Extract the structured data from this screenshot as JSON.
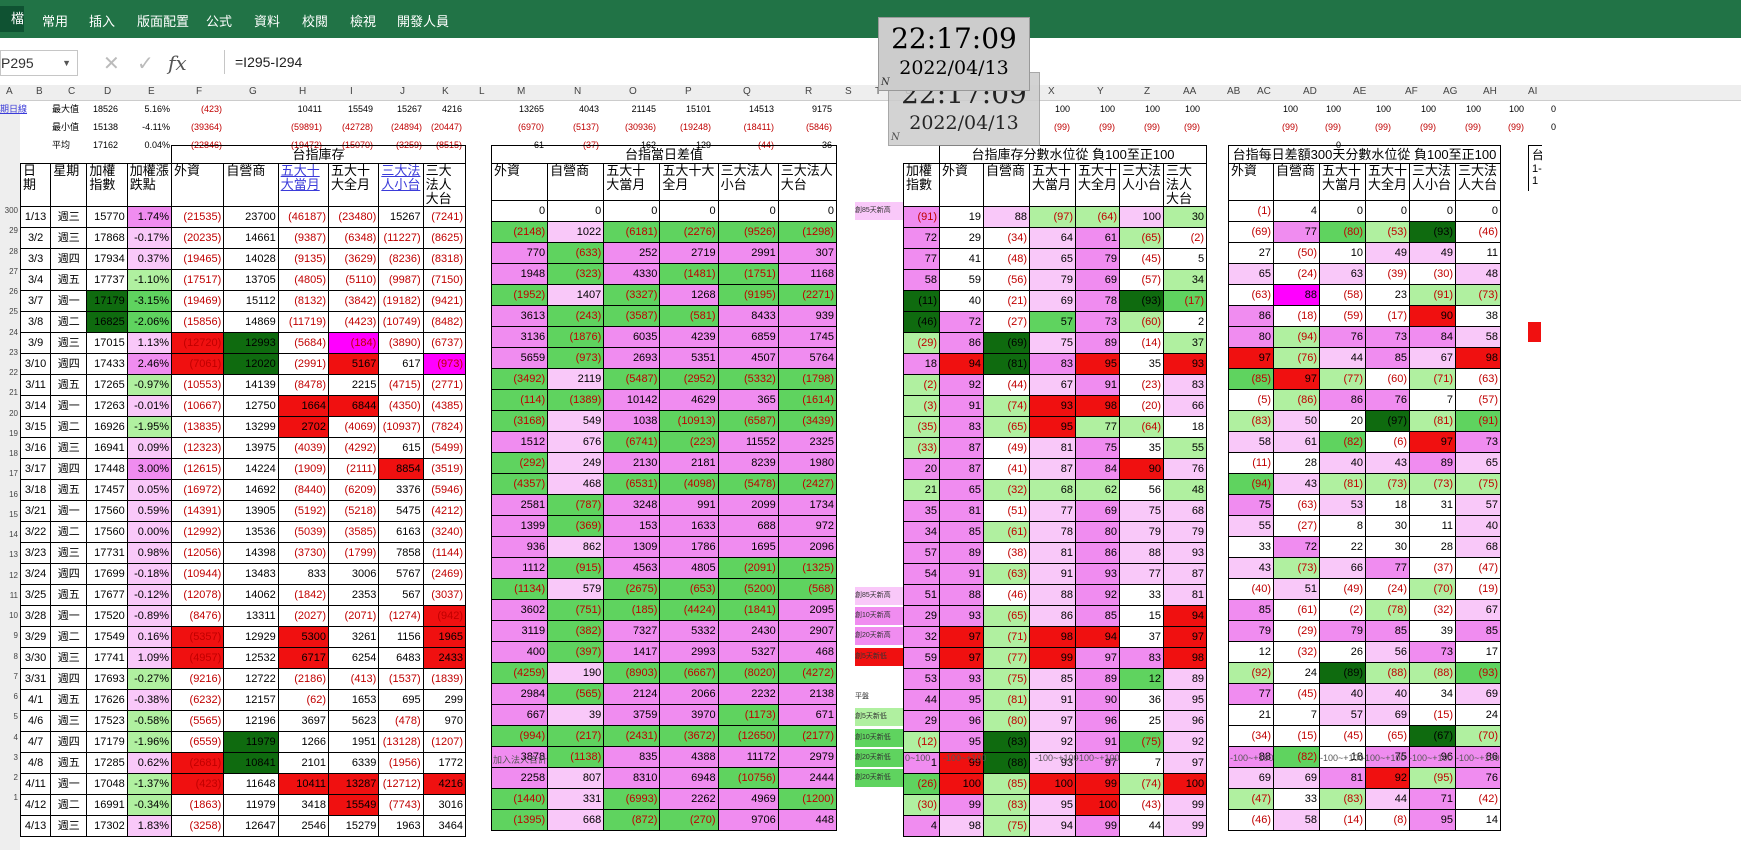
{
  "ribbon": {
    "file_label": "檔案",
    "tabs": [
      "常用",
      "插入",
      "版面配置",
      "公式",
      "資料",
      "校閱",
      "檢視",
      "開發人員"
    ]
  },
  "formula_bar": {
    "name_box": "P295",
    "formula": "=I295-I294",
    "fx_label": "fx",
    "cancel_icon": "x-icon",
    "enter_icon": "check-icon"
  },
  "columns": [
    "A",
    "B",
    "C",
    "D",
    "E",
    "F",
    "G",
    "H",
    "I",
    "J",
    "K",
    "L",
    "M",
    "N",
    "O",
    "P",
    "Q",
    "R",
    "S",
    "T",
    "U",
    "V",
    "W",
    "X",
    "Y",
    "Z",
    "AA",
    "AB",
    "AC",
    "AD",
    "AE",
    "AF",
    "AG",
    "AH",
    "AI"
  ],
  "row_numbers": [
    "300",
    "29",
    "28",
    "27",
    "26",
    "25",
    "24",
    "23",
    "22",
    "21",
    "20",
    "19",
    "18",
    "17",
    "16",
    "15",
    "14",
    "13",
    "12",
    "11",
    "10",
    "9",
    "8",
    "7",
    "6",
    "5",
    "4",
    "3",
    "2",
    "1"
  ],
  "stats": {
    "link": "期日線",
    "labels": [
      "最大值",
      "最小值",
      "平均"
    ],
    "D": [
      "18526",
      "15138",
      "17162"
    ],
    "E": [
      "5.16%",
      "-4.11%",
      "0.04%"
    ],
    "F": [
      "(423)",
      "(39364)",
      "(22846)"
    ],
    "H": [
      "10411",
      "(59891)",
      "(19472)"
    ],
    "I": [
      "15549",
      "(42728)",
      "(15070)"
    ],
    "J": [
      "15267",
      "(24894)",
      "(3259)"
    ],
    "K": [
      "4216",
      "(20447)",
      "(8515)"
    ],
    "M": [
      "13265",
      "(6970)",
      "61"
    ],
    "N": [
      "4043",
      "(5137)",
      "(37)"
    ],
    "O": [
      "21145",
      "(30936)",
      "162"
    ],
    "P": [
      "15101",
      "(19248)",
      "129"
    ],
    "Q": [
      "14513",
      "(18411)",
      "(44)"
    ],
    "R": [
      "9175",
      "(5846)",
      "36"
    ],
    "X": [
      "100",
      "(99)"
    ],
    "Y": [
      "100",
      "(99)"
    ],
    "Z": [
      "100",
      "(99)"
    ],
    "AA": [
      "100",
      "(99)"
    ],
    "AC": [
      "100",
      "(99)"
    ],
    "AD": [
      "100",
      "(99)",
      "0"
    ],
    "AE": [
      "100",
      "(99)"
    ],
    "AF": [
      "100",
      "(99)"
    ],
    "AG": [
      "100",
      "(99)"
    ],
    "AH": [
      "100",
      "(99)"
    ],
    "AI": [
      "0",
      "0"
    ]
  },
  "t1": {
    "section": "台指庫存",
    "headers": [
      "日期",
      "星期",
      "加權指數",
      "加權漲跌點",
      "外資",
      "自營商",
      "五大十大當月",
      "五大十大全月",
      "三大法人小台",
      "三大法人大台"
    ],
    "rows": [
      [
        "1/13",
        "週三",
        "15770",
        "1.74%",
        "(21535)",
        "23700",
        "(46187)",
        "(23480)",
        "15267",
        "(7241)"
      ],
      [
        "3/2",
        "週三",
        "17868",
        "-0.17%",
        "(20235)",
        "14661",
        "(9387)",
        "(6348)",
        "(11227)",
        "(8625)"
      ],
      [
        "3/3",
        "週四",
        "17934",
        "0.37%",
        "(19465)",
        "14028",
        "(9135)",
        "(3629)",
        "(8236)",
        "(8318)"
      ],
      [
        "3/4",
        "週五",
        "17737",
        "-1.10%",
        "(17517)",
        "13705",
        "(4805)",
        "(5110)",
        "(9987)",
        "(7150)"
      ],
      [
        "3/7",
        "週一",
        "17179",
        "-3.15%",
        "(19469)",
        "15112",
        "(8132)",
        "(3842)",
        "(19182)",
        "(9421)"
      ],
      [
        "3/8",
        "週二",
        "16825",
        "-2.06%",
        "(15856)",
        "14869",
        "(11719)",
        "(4423)",
        "(10749)",
        "(8482)"
      ],
      [
        "3/9",
        "週三",
        "17015",
        "1.13%",
        "(12720)",
        "12993",
        "(5684)",
        "(184)",
        "(3890)",
        "(6737)"
      ],
      [
        "3/10",
        "週四",
        "17433",
        "2.46%",
        "(7061)",
        "12020",
        "(2991)",
        "5167",
        "617",
        "(973)"
      ],
      [
        "3/11",
        "週五",
        "17265",
        "-0.97%",
        "(10553)",
        "14139",
        "(8478)",
        "2215",
        "(4715)",
        "(2771)"
      ],
      [
        "3/14",
        "週一",
        "17263",
        "-0.01%",
        "(10667)",
        "12750",
        "1664",
        "6844",
        "(4350)",
        "(4385)"
      ],
      [
        "3/15",
        "週二",
        "16926",
        "-1.95%",
        "(13835)",
        "13299",
        "2702",
        "(4069)",
        "(10937)",
        "(7824)"
      ],
      [
        "3/16",
        "週三",
        "16941",
        "0.09%",
        "(12323)",
        "13975",
        "(4039)",
        "(4292)",
        "615",
        "(5499)"
      ],
      [
        "3/17",
        "週四",
        "17448",
        "3.00%",
        "(12615)",
        "14224",
        "(1909)",
        "(2111)",
        "8854",
        "(3519)"
      ],
      [
        "3/18",
        "週五",
        "17457",
        "0.05%",
        "(16972)",
        "14692",
        "(8440)",
        "(6209)",
        "3376",
        "(5946)"
      ],
      [
        "3/21",
        "週一",
        "17560",
        "0.59%",
        "(14391)",
        "13905",
        "(5192)",
        "(5218)",
        "5475",
        "(4212)"
      ],
      [
        "3/22",
        "週二",
        "17560",
        "0.00%",
        "(12992)",
        "13536",
        "(5039)",
        "(3585)",
        "6163",
        "(3240)"
      ],
      [
        "3/23",
        "週三",
        "17731",
        "0.98%",
        "(12056)",
        "14398",
        "(3730)",
        "(1799)",
        "7858",
        "(1144)"
      ],
      [
        "3/24",
        "週四",
        "17699",
        "-0.18%",
        "(10944)",
        "13483",
        "833",
        "3006",
        "5767",
        "(2469)"
      ],
      [
        "3/25",
        "週五",
        "17677",
        "-0.12%",
        "(12078)",
        "14062",
        "(1842)",
        "2353",
        "567",
        "(3037)"
      ],
      [
        "3/28",
        "週一",
        "17520",
        "-0.89%",
        "(8476)",
        "13311",
        "(2027)",
        "(2071)",
        "(1274)",
        "(942)"
      ],
      [
        "3/29",
        "週二",
        "17549",
        "0.16%",
        "(5357)",
        "12929",
        "5300",
        "3261",
        "1156",
        "1965"
      ],
      [
        "3/30",
        "週三",
        "17741",
        "1.09%",
        "(4957)",
        "12532",
        "6717",
        "6254",
        "6483",
        "2433"
      ],
      [
        "3/31",
        "週四",
        "17693",
        "-0.27%",
        "(9216)",
        "12722",
        "(2186)",
        "(413)",
        "(1537)",
        "(1839)"
      ],
      [
        "4/1",
        "週五",
        "17626",
        "-0.38%",
        "(6232)",
        "12157",
        "(62)",
        "1653",
        "695",
        "299"
      ],
      [
        "4/6",
        "週三",
        "17523",
        "-0.58%",
        "(5565)",
        "12196",
        "3697",
        "5623",
        "(478)",
        "970"
      ],
      [
        "4/7",
        "週四",
        "17179",
        "-1.96%",
        "(6559)",
        "11979",
        "1266",
        "1951",
        "(13128)",
        "(1207)"
      ],
      [
        "4/8",
        "週五",
        "17285",
        "0.62%",
        "(2681)",
        "10841",
        "2101",
        "6339",
        "(1956)",
        "1772"
      ],
      [
        "4/11",
        "週一",
        "17048",
        "-1.37%",
        "(423)",
        "11648",
        "10411",
        "13287",
        "(12712)",
        "4216"
      ],
      [
        "4/12",
        "週二",
        "16991",
        "-0.34%",
        "(1863)",
        "11979",
        "3418",
        "15549",
        "(7743)",
        "3016"
      ],
      [
        "4/13",
        "週三",
        "17302",
        "1.83%",
        "(3258)",
        "12647",
        "2546",
        "15279",
        "1963",
        "3464"
      ]
    ]
  },
  "t2": {
    "section": "台指當日差值",
    "headers": [
      "外資",
      "自營商",
      "五大十大當月",
      "五大十大全月",
      "三大法人小台",
      "三大法人大台"
    ],
    "rows": [
      [
        "0",
        "0",
        "0",
        "0",
        "0",
        "0"
      ],
      [
        "(2148)",
        "1022",
        "(6181)",
        "(2276)",
        "(9526)",
        "(1298)"
      ],
      [
        "770",
        "(633)",
        "252",
        "2719",
        "2991",
        "307"
      ],
      [
        "1948",
        "(323)",
        "4330",
        "(1481)",
        "(1751)",
        "1168"
      ],
      [
        "(1952)",
        "1407",
        "(3327)",
        "1268",
        "(9195)",
        "(2271)"
      ],
      [
        "3613",
        "(243)",
        "(3587)",
        "(581)",
        "8433",
        "939"
      ],
      [
        "3136",
        "(1876)",
        "6035",
        "4239",
        "6859",
        "1745"
      ],
      [
        "5659",
        "(973)",
        "2693",
        "5351",
        "4507",
        "5764"
      ],
      [
        "(3492)",
        "2119",
        "(5487)",
        "(2952)",
        "(5332)",
        "(1798)"
      ],
      [
        "(114)",
        "(1389)",
        "10142",
        "4629",
        "365",
        "(1614)"
      ],
      [
        "(3168)",
        "549",
        "1038",
        "(10913)",
        "(6587)",
        "(3439)"
      ],
      [
        "1512",
        "676",
        "(6741)",
        "(223)",
        "11552",
        "2325"
      ],
      [
        "(292)",
        "249",
        "2130",
        "2181",
        "8239",
        "1980"
      ],
      [
        "(4357)",
        "468",
        "(6531)",
        "(4098)",
        "(5478)",
        "(2427)"
      ],
      [
        "2581",
        "(787)",
        "3248",
        "991",
        "2099",
        "1734"
      ],
      [
        "1399",
        "(369)",
        "153",
        "1633",
        "688",
        "972"
      ],
      [
        "936",
        "862",
        "1309",
        "1786",
        "1695",
        "2096"
      ],
      [
        "1112",
        "(915)",
        "4563",
        "4805",
        "(2091)",
        "(1325)"
      ],
      [
        "(1134)",
        "579",
        "(2675)",
        "(653)",
        "(5200)",
        "(568)"
      ],
      [
        "3602",
        "(751)",
        "(185)",
        "(4424)",
        "(1841)",
        "2095"
      ],
      [
        "3119",
        "(382)",
        "7327",
        "5332",
        "2430",
        "2907"
      ],
      [
        "400",
        "(397)",
        "1417",
        "2993",
        "5327",
        "468"
      ],
      [
        "(4259)",
        "190",
        "(8903)",
        "(6667)",
        "(8020)",
        "(4272)"
      ],
      [
        "2984",
        "(565)",
        "2124",
        "2066",
        "2232",
        "2138"
      ],
      [
        "667",
        "39",
        "3759",
        "3970",
        "(1173)",
        "671"
      ],
      [
        "(994)",
        "(217)",
        "(2431)",
        "(3672)",
        "(12650)",
        "(2177)"
      ],
      [
        "3878",
        "(1138)",
        "835",
        "4388",
        "11172",
        "2979"
      ],
      [
        "2258",
        "807",
        "8310",
        "6948",
        "(10756)",
        "2444"
      ],
      [
        "(1440)",
        "331",
        "(6993)",
        "2262",
        "4969",
        "(1200)"
      ],
      [
        "(1395)",
        "668",
        "(872)",
        "(270)",
        "9706",
        "448"
      ]
    ]
  },
  "labels_col": {
    "r0": "創85天新高",
    "r19": "創85天新高",
    "r20": "創10天新高",
    "r21": "創20天新高",
    "r22": "創5天新低",
    "r24": "平盤",
    "r25": "創5天新低",
    "r26": "創10天新低",
    "r27": "創20天新低",
    "r28": "創20天新低"
  },
  "t3": {
    "section": "台指庫存分數水位從 負100至正100",
    "headers": [
      "加權指數",
      "外資",
      "自營商",
      "五大十大當月",
      "五大十大全月",
      "三大法人小台",
      "三大法人大台"
    ],
    "rows": [
      [
        "(91)",
        "19",
        "88",
        "(97)",
        "(64)",
        "100",
        "30"
      ],
      [
        "72",
        "29",
        "(34)",
        "64",
        "61",
        "(65)",
        "(2)"
      ],
      [
        "77",
        "41",
        "(48)",
        "65",
        "79",
        "(45)",
        "5"
      ],
      [
        "58",
        "59",
        "(56)",
        "79",
        "69",
        "(57)",
        "34"
      ],
      [
        "(11)",
        "40",
        "(21)",
        "69",
        "78",
        "(93)",
        "(17)"
      ],
      [
        "(46)",
        "72",
        "(27)",
        "57",
        "73",
        "(60)",
        "2"
      ],
      [
        "(29)",
        "86",
        "(69)",
        "75",
        "89",
        "(14)",
        "37"
      ],
      [
        "18",
        "94",
        "(81)",
        "83",
        "95",
        "35",
        "93"
      ],
      [
        "(2)",
        "92",
        "(44)",
        "67",
        "91",
        "(23)",
        "83"
      ],
      [
        "(3)",
        "91",
        "(74)",
        "93",
        "98",
        "(20)",
        "66"
      ],
      [
        "(35)",
        "83",
        "(65)",
        "95",
        "77",
        "(64)",
        "18"
      ],
      [
        "(33)",
        "87",
        "(49)",
        "81",
        "75",
        "35",
        "55"
      ],
      [
        "20",
        "87",
        "(41)",
        "87",
        "84",
        "90",
        "76"
      ],
      [
        "21",
        "65",
        "(32)",
        "68",
        "62",
        "56",
        "48"
      ],
      [
        "35",
        "81",
        "(51)",
        "77",
        "69",
        "75",
        "68"
      ],
      [
        "34",
        "85",
        "(61)",
        "78",
        "80",
        "79",
        "79"
      ],
      [
        "57",
        "89",
        "(38)",
        "81",
        "86",
        "88",
        "93"
      ],
      [
        "54",
        "91",
        "(63)",
        "91",
        "93",
        "77",
        "87"
      ],
      [
        "51",
        "88",
        "(46)",
        "88",
        "92",
        "33",
        "81"
      ],
      [
        "29",
        "93",
        "(65)",
        "86",
        "85",
        "15",
        "94"
      ],
      [
        "32",
        "97",
        "(71)",
        "98",
        "94",
        "37",
        "97"
      ],
      [
        "59",
        "97",
        "(77)",
        "99",
        "97",
        "83",
        "98"
      ],
      [
        "53",
        "93",
        "(75)",
        "85",
        "89",
        "12",
        "89"
      ],
      [
        "44",
        "95",
        "(81)",
        "91",
        "90",
        "36",
        "95"
      ],
      [
        "29",
        "96",
        "(80)",
        "97",
        "96",
        "25",
        "96"
      ],
      [
        "(12)",
        "95",
        "(83)",
        "92",
        "91",
        "(75)",
        "92"
      ],
      [
        "1",
        "99",
        "(88)",
        "93",
        "97",
        "7",
        "97"
      ],
      [
        "(26)",
        "100",
        "(85)",
        "100",
        "99",
        "(74)",
        "100"
      ],
      [
        "(30)",
        "99",
        "(83)",
        "95",
        "100",
        "(43)",
        "99"
      ],
      [
        "4",
        "98",
        "(75)",
        "94",
        "99",
        "44",
        "99"
      ]
    ]
  },
  "t4": {
    "section": "台指每日差額300天分數水位從 負100至正100",
    "headers": [
      "外資",
      "自營商",
      "五大十大當月",
      "五大十大全月",
      "三大法人小台",
      "三大法人大台"
    ],
    "rows": [
      [
        "(1)",
        "4",
        "0",
        "0",
        "0",
        "0"
      ],
      [
        "(69)",
        "77",
        "(80)",
        "(53)",
        "(93)",
        "(46)"
      ],
      [
        "27",
        "(50)",
        "10",
        "49",
        "49",
        "11"
      ],
      [
        "65",
        "(24)",
        "63",
        "(39)",
        "(30)",
        "48"
      ],
      [
        "(63)",
        "88",
        "(58)",
        "23",
        "(91)",
        "(73)"
      ],
      [
        "86",
        "(18)",
        "(59)",
        "(17)",
        "90",
        "38"
      ],
      [
        "80",
        "(94)",
        "76",
        "73",
        "84",
        "58"
      ],
      [
        "97",
        "(76)",
        "44",
        "85",
        "67",
        "98"
      ],
      [
        "(85)",
        "97",
        "(77)",
        "(60)",
        "(71)",
        "(63)"
      ],
      [
        "(5)",
        "(86)",
        "86",
        "76",
        "7",
        "(57)"
      ],
      [
        "(83)",
        "50",
        "20",
        "(97)",
        "(81)",
        "(91)"
      ],
      [
        "58",
        "61",
        "(82)",
        "(6)",
        "97",
        "73"
      ],
      [
        "(11)",
        "28",
        "40",
        "43",
        "89",
        "65"
      ],
      [
        "(94)",
        "43",
        "(81)",
        "(73)",
        "(73)",
        "(75)"
      ],
      [
        "75",
        "(63)",
        "53",
        "18",
        "31",
        "57"
      ],
      [
        "55",
        "(27)",
        "8",
        "30",
        "11",
        "40"
      ],
      [
        "33",
        "72",
        "22",
        "30",
        "28",
        "68"
      ],
      [
        "43",
        "(73)",
        "66",
        "77",
        "(37)",
        "(47)"
      ],
      [
        "(40)",
        "51",
        "(49)",
        "(24)",
        "(70)",
        "(19)"
      ],
      [
        "85",
        "(61)",
        "(2)",
        "(78)",
        "(32)",
        "67"
      ],
      [
        "79",
        "(29)",
        "79",
        "85",
        "39",
        "85"
      ],
      [
        "12",
        "(32)",
        "26",
        "56",
        "73",
        "17"
      ],
      [
        "(92)",
        "24",
        "(89)",
        "(88)",
        "(88)",
        "(93)"
      ],
      [
        "77",
        "(45)",
        "40",
        "40",
        "34",
        "69"
      ],
      [
        "21",
        "7",
        "57",
        "69",
        "(15)",
        "24"
      ],
      [
        "(34)",
        "(15)",
        "(45)",
        "(65)",
        "(67)",
        "(70)"
      ],
      [
        "88",
        "(82)",
        "18",
        "75",
        "96",
        "86"
      ],
      [
        "69",
        "69",
        "81",
        "92",
        "(95)",
        "76"
      ],
      [
        "(47)",
        "33",
        "(83)",
        "44",
        "71",
        "(42)"
      ],
      [
        "(46)",
        "58",
        "(14)",
        "(8)",
        "95",
        "14"
      ]
    ]
  },
  "t5_head": [
    "台",
    "1-",
    "1"
  ],
  "footer": {
    "m": "加入法人合計",
    "x1": "0~100",
    "x2": "-100~+100",
    "x3": "-100~+100",
    "x4": "-100~+100",
    "ac1": "-100~+100",
    "ae1": "-100~+100",
    "af1": "-100~+100",
    "ag1": "-100~+100",
    "ah1": "-100~+100"
  },
  "clock": {
    "time": "22:17:09",
    "date": "2022/04/13",
    "badge": "N"
  },
  "colors": {
    "ribbon": "#217346",
    "pos_green": "#5fd35f",
    "neg_pink": "#f08cf0",
    "dark_green": "#0f6b0f",
    "red": "#f01010",
    "magenta": "#ff00ff",
    "neg_text": "#c00000"
  }
}
